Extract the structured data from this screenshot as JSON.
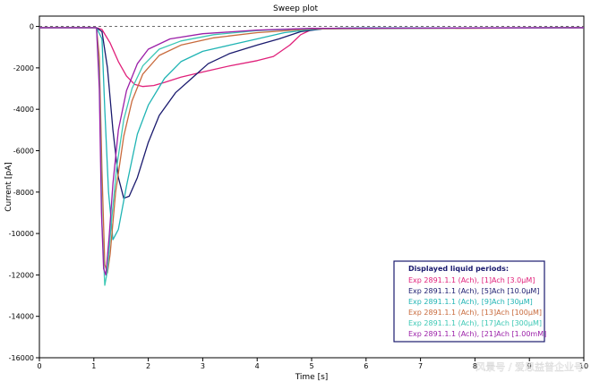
{
  "chart_data": {
    "type": "line",
    "title": "Sweep plot",
    "xlabel": "Time [s]",
    "ylabel": "Current [pA]",
    "xlim": [
      0,
      10
    ],
    "ylim": [
      -16000,
      500
    ],
    "x_ticks": [
      "0",
      "1",
      "2",
      "3",
      "4",
      "5",
      "6",
      "7",
      "8",
      "9",
      "10"
    ],
    "y_ticks": [
      "0",
      "-2000",
      "-4000",
      "-6000",
      "-8000",
      "-10000",
      "-12000",
      "-14000",
      "-16000"
    ],
    "x_tick_values": [
      0,
      1,
      2,
      3,
      4,
      5,
      6,
      7,
      8,
      9,
      10
    ],
    "y_tick_values": [
      0,
      -2000,
      -4000,
      -6000,
      -8000,
      -10000,
      -12000,
      -14000,
      -16000
    ],
    "grid": false,
    "zero_reference_line": true,
    "legend": {
      "title": "Displayed liquid periods:",
      "placement": "bottom-right"
    },
    "series": [
      {
        "name": "Exp 2891.1.1 (Ach), [1]Ach [3.0µM]",
        "color": "#e0207a",
        "points": [
          [
            0,
            -60
          ],
          [
            1.05,
            -60
          ],
          [
            1.15,
            -150
          ],
          [
            1.3,
            -800
          ],
          [
            1.45,
            -1700
          ],
          [
            1.6,
            -2400
          ],
          [
            1.75,
            -2800
          ],
          [
            1.9,
            -2900
          ],
          [
            2.1,
            -2850
          ],
          [
            2.3,
            -2700
          ],
          [
            2.6,
            -2450
          ],
          [
            3.0,
            -2200
          ],
          [
            3.5,
            -1900
          ],
          [
            4.0,
            -1650
          ],
          [
            4.3,
            -1450
          ],
          [
            4.6,
            -900
          ],
          [
            4.8,
            -400
          ],
          [
            5.0,
            -150
          ],
          [
            5.5,
            -80
          ],
          [
            10,
            -60
          ]
        ]
      },
      {
        "name": "Exp 2891.1.1 (Ach), [5]Ach [10.0µM]",
        "color": "#1a1a6e",
        "points": [
          [
            0,
            -60
          ],
          [
            1.05,
            -60
          ],
          [
            1.15,
            -250
          ],
          [
            1.25,
            -2000
          ],
          [
            1.35,
            -5000
          ],
          [
            1.45,
            -7300
          ],
          [
            1.55,
            -8300
          ],
          [
            1.65,
            -8200
          ],
          [
            1.8,
            -7300
          ],
          [
            2.0,
            -5600
          ],
          [
            2.2,
            -4300
          ],
          [
            2.5,
            -3200
          ],
          [
            2.8,
            -2500
          ],
          [
            3.1,
            -1800
          ],
          [
            3.5,
            -1300
          ],
          [
            4.0,
            -900
          ],
          [
            4.4,
            -600
          ],
          [
            4.8,
            -250
          ],
          [
            5.2,
            -120
          ],
          [
            6,
            -70
          ],
          [
            10,
            -60
          ]
        ]
      },
      {
        "name": "Exp 2891.1.1 (Ach), [9]Ach [30µM]",
        "color": "#20b4b4",
        "points": [
          [
            0,
            -60
          ],
          [
            1.05,
            -60
          ],
          [
            1.15,
            -600
          ],
          [
            1.2,
            -4000
          ],
          [
            1.27,
            -8000
          ],
          [
            1.35,
            -10300
          ],
          [
            1.45,
            -9800
          ],
          [
            1.6,
            -7700
          ],
          [
            1.8,
            -5200
          ],
          [
            2.0,
            -3800
          ],
          [
            2.3,
            -2500
          ],
          [
            2.6,
            -1700
          ],
          [
            3.0,
            -1200
          ],
          [
            3.5,
            -900
          ],
          [
            4.0,
            -600
          ],
          [
            4.5,
            -300
          ],
          [
            5.0,
            -150
          ],
          [
            5.5,
            -80
          ],
          [
            10,
            -60
          ]
        ]
      },
      {
        "name": "Exp 2891.1.1 (Ach), [13]Ach [100µM]",
        "color": "#c86a3c",
        "points": [
          [
            0,
            -60
          ],
          [
            1.05,
            -60
          ],
          [
            1.1,
            -1500
          ],
          [
            1.15,
            -7000
          ],
          [
            1.2,
            -11500
          ],
          [
            1.25,
            -11900
          ],
          [
            1.3,
            -11000
          ],
          [
            1.4,
            -8000
          ],
          [
            1.55,
            -5300
          ],
          [
            1.7,
            -3600
          ],
          [
            1.9,
            -2300
          ],
          [
            2.2,
            -1400
          ],
          [
            2.6,
            -900
          ],
          [
            3.2,
            -550
          ],
          [
            4.0,
            -300
          ],
          [
            5.0,
            -120
          ],
          [
            10,
            -60
          ]
        ]
      },
      {
        "name": "Exp 2891.1.1 (Ach), [17]Ach [300µM]",
        "color": "#3cc8b4",
        "points": [
          [
            0,
            -60
          ],
          [
            1.05,
            -60
          ],
          [
            1.1,
            -2500
          ],
          [
            1.15,
            -9500
          ],
          [
            1.2,
            -12500
          ],
          [
            1.25,
            -11800
          ],
          [
            1.32,
            -9500
          ],
          [
            1.42,
            -6800
          ],
          [
            1.55,
            -4500
          ],
          [
            1.7,
            -3000
          ],
          [
            1.9,
            -1900
          ],
          [
            2.2,
            -1100
          ],
          [
            2.6,
            -700
          ],
          [
            3.2,
            -400
          ],
          [
            4.0,
            -200
          ],
          [
            5.0,
            -100
          ],
          [
            10,
            -60
          ]
        ]
      },
      {
        "name": "Exp 2891.1.1 (Ach), [21]Ach [1.00mM]",
        "color": "#9b1fa8",
        "points": [
          [
            0,
            -60
          ],
          [
            1.05,
            -60
          ],
          [
            1.1,
            -3000
          ],
          [
            1.14,
            -9000
          ],
          [
            1.18,
            -11700
          ],
          [
            1.22,
            -12000
          ],
          [
            1.28,
            -10200
          ],
          [
            1.35,
            -7600
          ],
          [
            1.45,
            -5000
          ],
          [
            1.6,
            -3100
          ],
          [
            1.8,
            -1800
          ],
          [
            2.0,
            -1100
          ],
          [
            2.4,
            -600
          ],
          [
            3.0,
            -350
          ],
          [
            4.0,
            -180
          ],
          [
            5.0,
            -90
          ],
          [
            10,
            -60
          ]
        ]
      }
    ]
  },
  "watermark": "风景号 / 爱思益普企业号"
}
